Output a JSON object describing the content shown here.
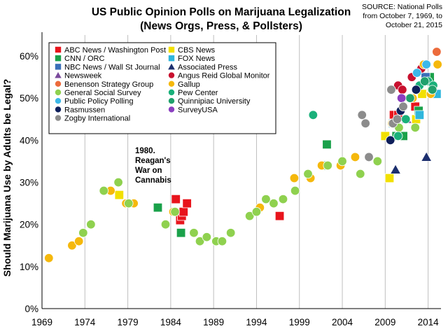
{
  "chart_data": {
    "type": "scatter",
    "title": "US Public Opinion Polls on Marijuana Legalization",
    "subtitle": "(News Orgs, Press, & Pollsters)",
    "source_lines": [
      "SOURCE: National Polls",
      "from October 7, 1969, to",
      "October 21, 2015"
    ],
    "ylabel": "Should Marijuana Use by Adults be Legal?",
    "xlabel": "",
    "xlim": [
      1969,
      2015.5
    ],
    "ylim": [
      0,
      65
    ],
    "x_ticks": [
      1969,
      1974,
      1979,
      1984,
      1989,
      1994,
      1999,
      2004,
      2009,
      2014
    ],
    "x_tick_labels": [
      "1969",
      "1974",
      "1979",
      "1984",
      "1989",
      "1994",
      "1999",
      "2004",
      "2009",
      "2014"
    ],
    "y_ticks": [
      0,
      10,
      20,
      30,
      40,
      50,
      60
    ],
    "y_tick_labels": [
      "0%",
      "10%",
      "20%",
      "30%",
      "40%",
      "50%",
      "60%"
    ],
    "grid": "vertical",
    "legend_position": "top-left",
    "annotation": {
      "lines": [
        "1980.",
        "Reagan's",
        "War on",
        "Cannabis"
      ],
      "x": 1980.3,
      "y": 42
    },
    "series": [
      {
        "name": "ABC News / Washington Post",
        "marker": "square",
        "color": "#e8141c",
        "points": [
          [
            1984.6,
            26
          ],
          [
            1985.1,
            21
          ],
          [
            1985.3,
            22
          ],
          [
            1985.5,
            23
          ],
          [
            1985.9,
            25
          ],
          [
            1996.7,
            22
          ],
          [
            2010.0,
            46
          ],
          [
            2010.5,
            46
          ],
          [
            2012.5,
            48
          ]
        ]
      },
      {
        "name": "CBS News",
        "marker": "square",
        "color": "#f2e000",
        "points": [
          [
            1978.0,
            27
          ],
          [
            2009.0,
            41
          ],
          [
            2009.5,
            31
          ],
          [
            2012.6,
            45
          ],
          [
            2013.3,
            51
          ]
        ]
      },
      {
        "name": "CNN / ORC",
        "marker": "square",
        "color": "#1aa14a",
        "points": [
          [
            1982.5,
            24
          ],
          [
            1985.2,
            18
          ],
          [
            2002.0,
            34
          ],
          [
            2002.2,
            39
          ],
          [
            2010.3,
            41
          ],
          [
            2011.1,
            41
          ],
          [
            2012.9,
            47
          ],
          [
            2014.2,
            55
          ]
        ]
      },
      {
        "name": "FOX News",
        "marker": "square",
        "color": "#2fb6dc",
        "points": [
          [
            2009.9,
            44
          ],
          [
            2013.0,
            46
          ],
          [
            2015.0,
            51
          ]
        ]
      },
      {
        "name": "NBC News / Wall St Journal",
        "marker": "square",
        "color": "#3a6fb8",
        "points": [
          [
            2013.7,
            55
          ]
        ]
      },
      {
        "name": "Associated Press",
        "marker": "triangle",
        "color": "#1c2f6e",
        "points": [
          [
            2010.2,
            33
          ],
          [
            2013.8,
            36
          ]
        ]
      },
      {
        "name": "Newsweek",
        "marker": "triangle",
        "color": "#7b4a9c",
        "points": [
          [
            2011.5,
            45
          ]
        ]
      },
      {
        "name": "Angus Reid Global Monitor",
        "marker": "circle",
        "color": "#c8102e",
        "points": [
          [
            2010.5,
            53
          ],
          [
            2011.0,
            52
          ],
          [
            2012.1,
            55
          ],
          [
            2013.2,
            57
          ]
        ]
      },
      {
        "name": "Benenson Strategy Group",
        "marker": "circle",
        "color": "#ec6b3c",
        "points": [
          [
            2015.0,
            61
          ]
        ]
      },
      {
        "name": "Gallup",
        "marker": "circle",
        "color": "#f5b80c",
        "points": [
          [
            1969.8,
            12
          ],
          [
            1972.5,
            15
          ],
          [
            1973.3,
            16
          ],
          [
            1977.0,
            28
          ],
          [
            1978.8,
            25
          ],
          [
            1979.7,
            25
          ],
          [
            1984.3,
            23
          ],
          [
            1994.4,
            24
          ],
          [
            1998.4,
            31
          ],
          [
            2000.3,
            31
          ],
          [
            2001.6,
            34
          ],
          [
            2003.8,
            34
          ],
          [
            2005.5,
            36
          ],
          [
            2009.8,
            44
          ],
          [
            2011.0,
            50
          ],
          [
            2012.2,
            50
          ],
          [
            2013.5,
            58
          ],
          [
            2014.3,
            51
          ],
          [
            2015.1,
            58
          ]
        ]
      },
      {
        "name": "General Social Survey",
        "marker": "circle",
        "color": "#8fd14f",
        "points": [
          [
            1973.8,
            18
          ],
          [
            1974.7,
            20
          ],
          [
            1976.2,
            28
          ],
          [
            1977.9,
            30
          ],
          [
            1979.1,
            25
          ],
          [
            1983.4,
            20
          ],
          [
            1984.5,
            23
          ],
          [
            1986.7,
            18
          ],
          [
            1987.4,
            16
          ],
          [
            1988.2,
            17
          ],
          [
            1989.3,
            16
          ],
          [
            1990.0,
            16
          ],
          [
            1991.0,
            18
          ],
          [
            1993.2,
            22
          ],
          [
            1994.0,
            23
          ],
          [
            1995.1,
            26
          ],
          [
            1996.0,
            25
          ],
          [
            1997.1,
            26
          ],
          [
            1998.5,
            28
          ],
          [
            2000.0,
            32
          ],
          [
            2002.3,
            34
          ],
          [
            2004.0,
            35
          ],
          [
            2006.1,
            32
          ],
          [
            2008.1,
            35
          ],
          [
            2010.6,
            43
          ],
          [
            2012.5,
            43
          ],
          [
            2014.4,
            52
          ]
        ]
      },
      {
        "name": "Pew Center",
        "marker": "circle",
        "color": "#1ab07a",
        "points": [
          [
            2000.6,
            46
          ],
          [
            2010.5,
            41
          ],
          [
            2011.4,
            45
          ],
          [
            2012.6,
            52
          ],
          [
            2013.0,
            53
          ],
          [
            2014.0,
            54
          ],
          [
            2014.6,
            53
          ]
        ]
      },
      {
        "name": "Public Policy Polling",
        "marker": "circle",
        "color": "#3cb8e8",
        "points": [
          [
            2012.7,
            56
          ],
          [
            2013.8,
            58
          ]
        ]
      },
      {
        "name": "Quinnipiac University",
        "marker": "circle",
        "color": "#20a06c",
        "points": [
          [
            2011.9,
            50
          ],
          [
            2013.6,
            54
          ],
          [
            2014.5,
            52
          ]
        ]
      },
      {
        "name": "Rasmussen",
        "marker": "circle",
        "color": "#0e1f5b",
        "points": [
          [
            2009.6,
            40
          ],
          [
            2010.8,
            47
          ],
          [
            2012.6,
            52
          ]
        ]
      },
      {
        "name": "SurveyUSA",
        "marker": "circle",
        "color": "#8a3fc0",
        "points": [
          [
            2010.9,
            50
          ]
        ]
      },
      {
        "name": "Zogby International",
        "marker": "circle",
        "color": "#8c8c8c",
        "points": [
          [
            2006.3,
            46
          ],
          [
            2006.7,
            44
          ],
          [
            2007.1,
            36
          ],
          [
            2009.7,
            52
          ],
          [
            2009.9,
            44
          ],
          [
            2010.4,
            45
          ],
          [
            2011.1,
            48
          ]
        ]
      }
    ]
  }
}
